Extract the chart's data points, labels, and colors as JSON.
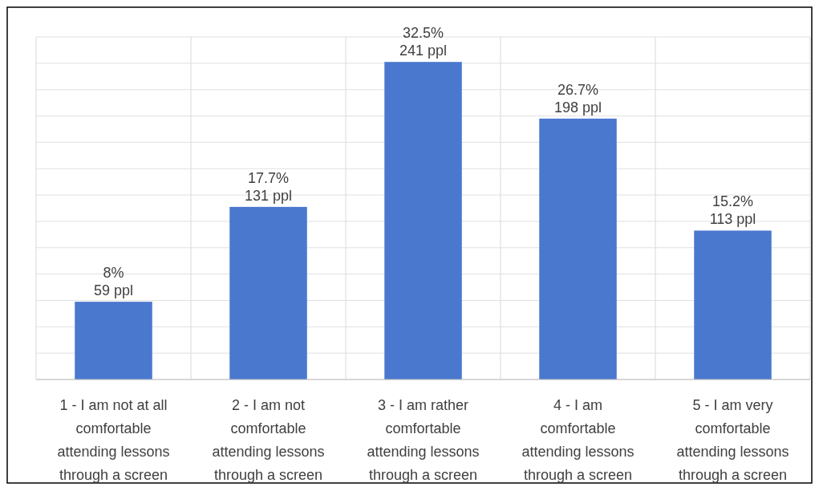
{
  "chart_data": {
    "type": "bar",
    "categories": [
      "1 - I am not at all comfortable attending lessons through a screen",
      "2 - I am not comfortable attending lessons through a screen",
      "3 - I am rather comfortable attending lessons through a screen",
      "4 - I am comfortable attending lessons through a screen",
      "5 - I am very comfortable attending lessons through a screen"
    ],
    "values": [
      59,
      131,
      241,
      198,
      113
    ],
    "value_labels": [
      "8%\n59 ppl",
      "17.7%\n131 ppl",
      "32.5%\n241 ppl",
      "26.7%\n198 ppl",
      "15.2%\n113 ppl"
    ],
    "color": "#4a78cf",
    "ylim": [
      0,
      260
    ],
    "yticks": [
      {
        "value": 0,
        "label": null
      },
      {
        "value": 20,
        "label": null
      },
      {
        "value": 40,
        "label": null
      },
      {
        "value": 60,
        "label": null
      },
      {
        "value": 80,
        "label": null
      },
      {
        "value": 100,
        "label": null
      },
      {
        "value": 120,
        "label": null
      },
      {
        "value": 140,
        "label": null
      },
      {
        "value": 160,
        "label": null
      },
      {
        "value": 180,
        "label": null
      },
      {
        "value": 200,
        "label": null
      },
      {
        "value": 220,
        "label": null
      },
      {
        "value": 240,
        "label": null
      },
      {
        "value": 260,
        "label": null
      }
    ],
    "tick_labels": "x",
    "grid": true
  }
}
